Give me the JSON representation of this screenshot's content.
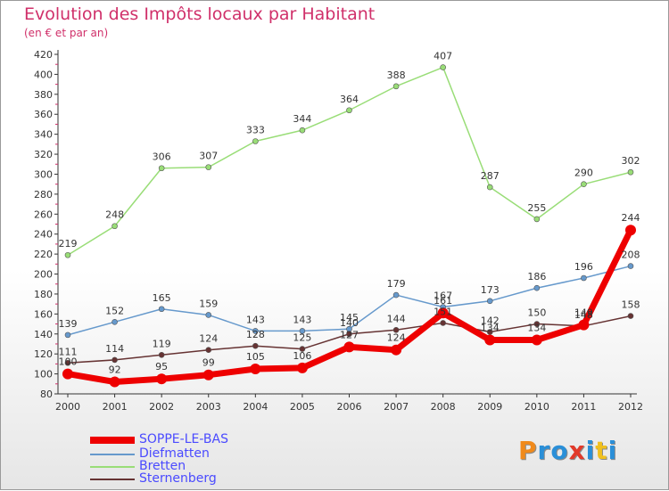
{
  "title": "Evolution des Impôts locaux par Habitant",
  "subtitle": "(en € et par an)",
  "logo": {
    "letters": [
      "P",
      "r",
      "o",
      "x",
      "i",
      "t",
      "i"
    ],
    "colors": [
      "#f08a1c",
      "#2a8fd8",
      "#2a8fd8",
      "#e23a2a",
      "#2a8fd8",
      "#f0c020",
      "#2a8fd8"
    ]
  },
  "chart_data": {
    "type": "line",
    "x": [
      "2000",
      "2001",
      "2002",
      "2003",
      "2004",
      "2005",
      "2006",
      "2007",
      "2008",
      "2009",
      "2010",
      "2011",
      "2012"
    ],
    "ylim": [
      80,
      420
    ],
    "yticks": [
      80,
      100,
      120,
      140,
      160,
      180,
      200,
      220,
      240,
      260,
      280,
      300,
      320,
      340,
      360,
      380,
      400,
      420
    ],
    "grid": false,
    "legend_position": "bottom-left",
    "series": [
      {
        "name": "SOPPE-LE-BAS",
        "color": "#ee0000",
        "values": [
          100,
          92,
          95,
          99,
          105,
          106,
          127,
          124,
          161,
          134,
          134,
          149,
          244
        ]
      },
      {
        "name": "Diefmatten",
        "color": "#6699cc",
        "values": [
          139,
          152,
          165,
          159,
          143,
          143,
          145,
          179,
          167,
          173,
          186,
          196,
          208
        ]
      },
      {
        "name": "Bretten",
        "color": "#99dd77",
        "values": [
          219,
          248,
          306,
          307,
          333,
          344,
          364,
          388,
          407,
          287,
          255,
          290,
          302
        ]
      },
      {
        "name": "Sternenberg",
        "color": "#663333",
        "values": [
          111,
          114,
          119,
          124,
          128,
          125,
          140,
          144,
          151,
          142,
          150,
          148,
          158
        ]
      }
    ]
  }
}
